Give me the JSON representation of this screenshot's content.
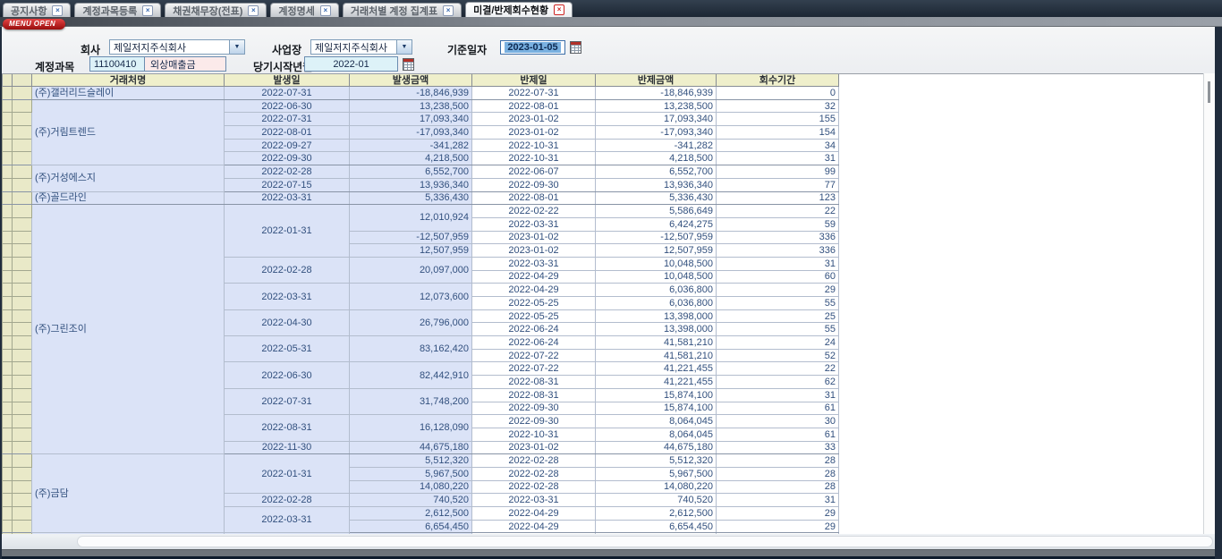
{
  "tabs": [
    {
      "label": "공지사항",
      "active": false
    },
    {
      "label": "계정과목등록",
      "active": false
    },
    {
      "label": "채권채무장(전표)",
      "active": false
    },
    {
      "label": "계정명세",
      "active": false
    },
    {
      "label": "거래처별 계정 집계표",
      "active": false
    },
    {
      "label": "미결/반제회수현황",
      "active": true
    }
  ],
  "menu_open_label": "MENU OPEN",
  "form": {
    "company_label": "회사",
    "company_value": "제일저지주식회사",
    "site_label": "사업장",
    "site_value": "제일저지주식회사",
    "base_date_label": "기준일자",
    "base_date_value": "2023-01-05",
    "account_label": "계정과목",
    "account_code": "11100410",
    "account_name": "외상매출금",
    "start_month_label": "당기시작년월",
    "start_month_value": "2022-01"
  },
  "colors": {
    "tab_bar_bg": "#1c2633",
    "menu_open_bg": "#b01414",
    "header_bg": "#efefcb",
    "row_header_bg": "#e9e9c8",
    "cell_blue_bg": "#dbe3f7",
    "cell_text": "#32507e",
    "date_selection_bg": "#79b0e0",
    "account_code_bg": "#ddf2f8",
    "account_name_bg": "#fbeaea"
  },
  "table": {
    "headers": [
      "거래처명",
      "발생일",
      "발생금액",
      "반제일",
      "반제금액",
      "회수기간"
    ],
    "groups": [
      {
        "name": "(주)갤러리드슬레이",
        "occurrences": [
          {
            "date": "2022-07-31",
            "amounts": [
              {
                "amount": "-18,846,939",
                "settlements": [
                  {
                    "date": "2022-07-31",
                    "amount": "-18,846,939",
                    "days": "0"
                  }
                ]
              }
            ]
          }
        ]
      },
      {
        "name": "(주)거림트렌드",
        "occurrences": [
          {
            "date": "2022-06-30",
            "amounts": [
              {
                "amount": "13,238,500",
                "settlements": [
                  {
                    "date": "2022-08-01",
                    "amount": "13,238,500",
                    "days": "32"
                  }
                ]
              }
            ]
          },
          {
            "date": "2022-07-31",
            "amounts": [
              {
                "amount": "17,093,340",
                "settlements": [
                  {
                    "date": "2023-01-02",
                    "amount": "17,093,340",
                    "days": "155"
                  }
                ]
              }
            ]
          },
          {
            "date": "2022-08-01",
            "amounts": [
              {
                "amount": "-17,093,340",
                "settlements": [
                  {
                    "date": "2023-01-02",
                    "amount": "-17,093,340",
                    "days": "154"
                  }
                ]
              }
            ]
          },
          {
            "date": "2022-09-27",
            "amounts": [
              {
                "amount": "-341,282",
                "settlements": [
                  {
                    "date": "2022-10-31",
                    "amount": "-341,282",
                    "days": "34"
                  }
                ]
              }
            ]
          },
          {
            "date": "2022-09-30",
            "amounts": [
              {
                "amount": "4,218,500",
                "settlements": [
                  {
                    "date": "2022-10-31",
                    "amount": "4,218,500",
                    "days": "31"
                  }
                ]
              }
            ]
          }
        ]
      },
      {
        "name": "(주)거성에스지",
        "occurrences": [
          {
            "date": "2022-02-28",
            "amounts": [
              {
                "amount": "6,552,700",
                "settlements": [
                  {
                    "date": "2022-06-07",
                    "amount": "6,552,700",
                    "days": "99"
                  }
                ]
              }
            ]
          },
          {
            "date": "2022-07-15",
            "amounts": [
              {
                "amount": "13,936,340",
                "settlements": [
                  {
                    "date": "2022-09-30",
                    "amount": "13,936,340",
                    "days": "77"
                  }
                ]
              }
            ]
          }
        ]
      },
      {
        "name": "(주)골드라인",
        "occurrences": [
          {
            "date": "2022-03-31",
            "amounts": [
              {
                "amount": "5,336,430",
                "settlements": [
                  {
                    "date": "2022-08-01",
                    "amount": "5,336,430",
                    "days": "123"
                  }
                ]
              }
            ]
          }
        ]
      },
      {
        "name": "(주)그린조이",
        "occurrences": [
          {
            "date": "2022-01-31",
            "amounts": [
              {
                "amount": "12,010,924",
                "settlements": [
                  {
                    "date": "2022-02-22",
                    "amount": "5,586,649",
                    "days": "22"
                  },
                  {
                    "date": "2022-03-31",
                    "amount": "6,424,275",
                    "days": "59"
                  }
                ]
              },
              {
                "amount": "-12,507,959",
                "settlements": [
                  {
                    "date": "2023-01-02",
                    "amount": "-12,507,959",
                    "days": "336"
                  }
                ]
              },
              {
                "amount": "12,507,959",
                "settlements": [
                  {
                    "date": "2023-01-02",
                    "amount": "12,507,959",
                    "days": "336"
                  }
                ]
              }
            ]
          },
          {
            "date": "2022-02-28",
            "amounts": [
              {
                "amount": "20,097,000",
                "settlements": [
                  {
                    "date": "2022-03-31",
                    "amount": "10,048,500",
                    "days": "31"
                  },
                  {
                    "date": "2022-04-29",
                    "amount": "10,048,500",
                    "days": "60"
                  }
                ]
              }
            ]
          },
          {
            "date": "2022-03-31",
            "amounts": [
              {
                "amount": "12,073,600",
                "settlements": [
                  {
                    "date": "2022-04-29",
                    "amount": "6,036,800",
                    "days": "29"
                  },
                  {
                    "date": "2022-05-25",
                    "amount": "6,036,800",
                    "days": "55"
                  }
                ]
              }
            ]
          },
          {
            "date": "2022-04-30",
            "amounts": [
              {
                "amount": "26,796,000",
                "settlements": [
                  {
                    "date": "2022-05-25",
                    "amount": "13,398,000",
                    "days": "25"
                  },
                  {
                    "date": "2022-06-24",
                    "amount": "13,398,000",
                    "days": "55"
                  }
                ]
              }
            ]
          },
          {
            "date": "2022-05-31",
            "amounts": [
              {
                "amount": "83,162,420",
                "settlements": [
                  {
                    "date": "2022-06-24",
                    "amount": "41,581,210",
                    "days": "24"
                  },
                  {
                    "date": "2022-07-22",
                    "amount": "41,581,210",
                    "days": "52"
                  }
                ]
              }
            ]
          },
          {
            "date": "2022-06-30",
            "amounts": [
              {
                "amount": "82,442,910",
                "settlements": [
                  {
                    "date": "2022-07-22",
                    "amount": "41,221,455",
                    "days": "22"
                  },
                  {
                    "date": "2022-08-31",
                    "amount": "41,221,455",
                    "days": "62"
                  }
                ]
              }
            ]
          },
          {
            "date": "2022-07-31",
            "amounts": [
              {
                "amount": "31,748,200",
                "settlements": [
                  {
                    "date": "2022-08-31",
                    "amount": "15,874,100",
                    "days": "31"
                  },
                  {
                    "date": "2022-09-30",
                    "amount": "15,874,100",
                    "days": "61"
                  }
                ]
              }
            ]
          },
          {
            "date": "2022-08-31",
            "amounts": [
              {
                "amount": "16,128,090",
                "settlements": [
                  {
                    "date": "2022-09-30",
                    "amount": "8,064,045",
                    "days": "30"
                  },
                  {
                    "date": "2022-10-31",
                    "amount": "8,064,045",
                    "days": "61"
                  }
                ]
              }
            ]
          },
          {
            "date": "2022-11-30",
            "amounts": [
              {
                "amount": "44,675,180",
                "settlements": [
                  {
                    "date": "2023-01-02",
                    "amount": "44,675,180",
                    "days": "33"
                  }
                ]
              }
            ]
          }
        ]
      },
      {
        "name": "(주)금담",
        "occurrences": [
          {
            "date": "2022-01-31",
            "amounts": [
              {
                "amount": "5,512,320",
                "settlements": [
                  {
                    "date": "2022-02-28",
                    "amount": "5,512,320",
                    "days": "28"
                  }
                ]
              },
              {
                "amount": "5,967,500",
                "settlements": [
                  {
                    "date": "2022-02-28",
                    "amount": "5,967,500",
                    "days": "28"
                  }
                ]
              },
              {
                "amount": "14,080,220",
                "settlements": [
                  {
                    "date": "2022-02-28",
                    "amount": "14,080,220",
                    "days": "28"
                  }
                ]
              }
            ]
          },
          {
            "date": "2022-02-28",
            "amounts": [
              {
                "amount": "740,520",
                "settlements": [
                  {
                    "date": "2022-03-31",
                    "amount": "740,520",
                    "days": "31"
                  }
                ]
              }
            ]
          },
          {
            "date": "2022-03-31",
            "amounts": [
              {
                "amount": "2,612,500",
                "settlements": [
                  {
                    "date": "2022-04-29",
                    "amount": "2,612,500",
                    "days": "29"
                  }
                ]
              },
              {
                "amount": "6,654,450",
                "settlements": [
                  {
                    "date": "2022-04-29",
                    "amount": "6,654,450",
                    "days": "29"
                  }
                ]
              }
            ]
          }
        ]
      }
    ]
  }
}
